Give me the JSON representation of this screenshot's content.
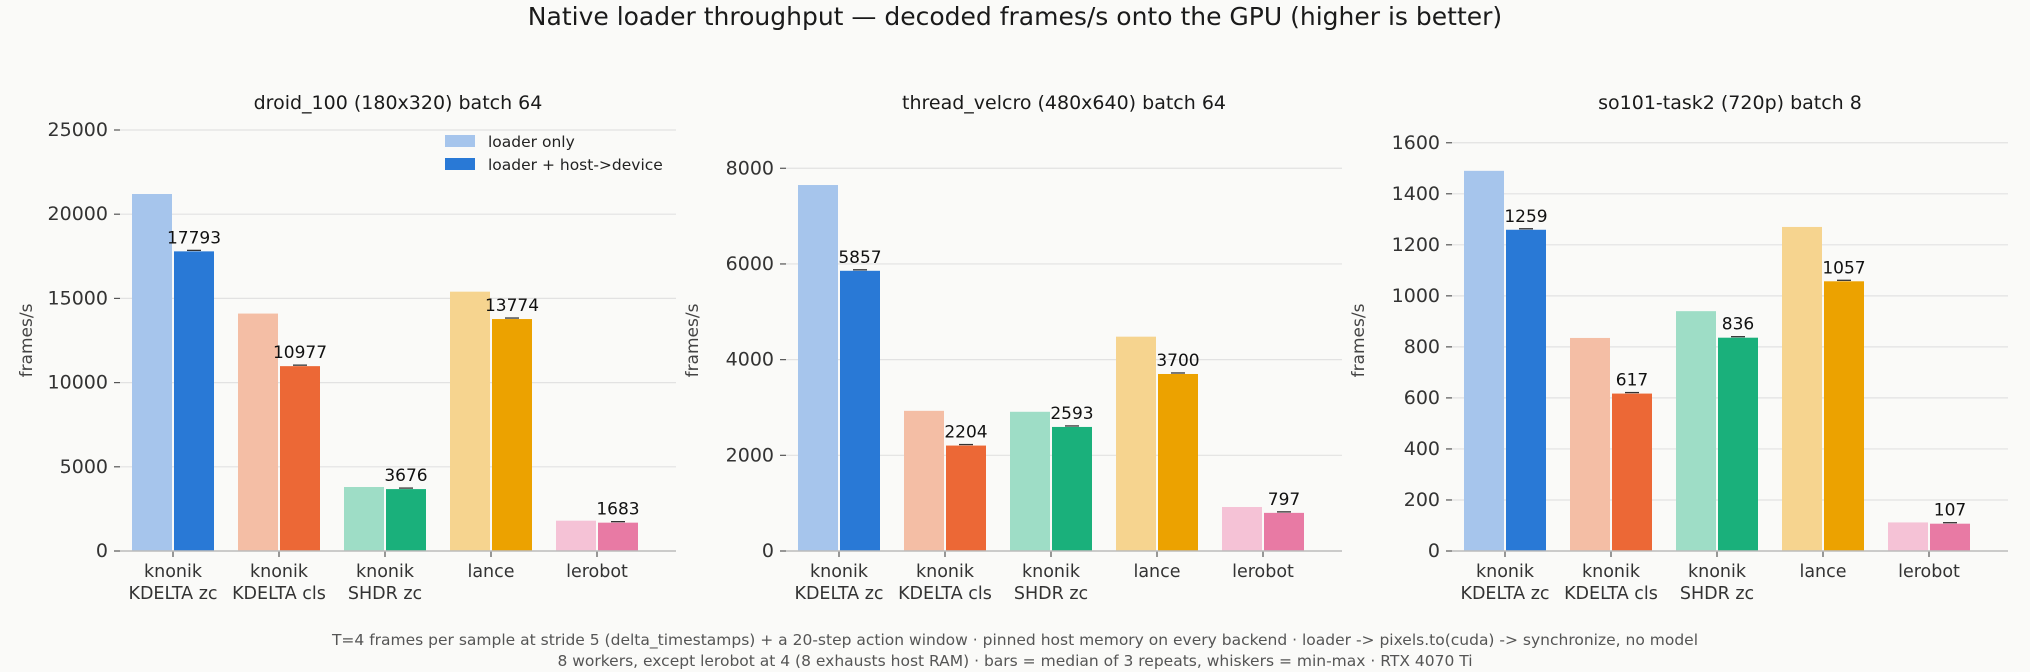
{
  "title": "Native loader throughput  —  decoded frames/s onto the GPU  (higher is better)",
  "footnote": [
    "T=4 frames per sample at stride 5 (delta_timestamps) + a 20-step action window · pinned host memory on every backend · loader -> pixels.to(cuda) -> synchronize, no model",
    "8 workers, except lerobot at 4 (8 exhausts host RAM) · bars = median of 3 repeats, whiskers = min-max · RTX 4070 Ti"
  ],
  "legend": {
    "placement": "upper right of first panel",
    "entries": [
      "loader only",
      "loader + host->device"
    ],
    "colors": [
      "#a6c5ec",
      "#2979d6"
    ]
  },
  "series_colors": {
    "loader_only": [
      "#a6c5ec",
      "#f4bea5",
      "#9eddc6",
      "#f6d48f",
      "#f5c2d6"
    ],
    "loader_plus_h2d": [
      "#2979d6",
      "#ec6836",
      "#1ab07b",
      "#eca200",
      "#e87aa4"
    ]
  },
  "chart_data": [
    {
      "type": "bar",
      "title": "droid_100 (180x320)   batch 64",
      "ylabel": "frames/s",
      "ylim": [
        0,
        25000
      ],
      "yticks": [
        0,
        5000,
        10000,
        15000,
        20000,
        25000
      ],
      "grid": true,
      "categories": [
        "knonik\nKDELTA zc",
        "knonik\nKDELTA cls",
        "knonik\nSHDR zc",
        "lance",
        "lerobot"
      ],
      "series": [
        {
          "name": "loader only",
          "values": [
            21200,
            14100,
            3800,
            15400,
            1800
          ]
        },
        {
          "name": "loader + host->device",
          "values": [
            17793,
            10977,
            3676,
            13774,
            1683
          ]
        }
      ],
      "data_labels": [
        "17793",
        "10977",
        "3676",
        "13774",
        "1683"
      ]
    },
    {
      "type": "bar",
      "title": "thread_velcro (480x640)   batch 64",
      "ylabel": "frames/s",
      "ylim": [
        0,
        8800
      ],
      "yticks": [
        0,
        2000,
        4000,
        6000,
        8000
      ],
      "grid": true,
      "categories": [
        "knonik\nKDELTA zc",
        "knonik\nKDELTA cls",
        "knonik\nSHDR zc",
        "lance",
        "lerobot"
      ],
      "series": [
        {
          "name": "loader only",
          "values": [
            7650,
            2930,
            2910,
            4480,
            920
          ]
        },
        {
          "name": "loader + host->device",
          "values": [
            5857,
            2204,
            2593,
            3700,
            797
          ]
        }
      ],
      "data_labels": [
        "5857",
        "2204",
        "2593",
        "3700",
        "797"
      ]
    },
    {
      "type": "bar",
      "title": "so101-task2 (720p)   batch 8",
      "ylabel": "frames/s",
      "ylim": [
        0,
        1650
      ],
      "yticks": [
        0,
        200,
        400,
        600,
        800,
        1000,
        1200,
        1400,
        1600
      ],
      "grid": true,
      "categories": [
        "knonik\nKDELTA zc",
        "knonik\nKDELTA cls",
        "knonik\nSHDR zc",
        "lance",
        "lerobot"
      ],
      "series": [
        {
          "name": "loader only",
          "values": [
            1490,
            835,
            940,
            1270,
            112
          ]
        },
        {
          "name": "loader + host->device",
          "values": [
            1259,
            617,
            836,
            1057,
            107
          ]
        }
      ],
      "data_labels": [
        "1259",
        "617",
        "836",
        "1057",
        "107"
      ]
    }
  ]
}
